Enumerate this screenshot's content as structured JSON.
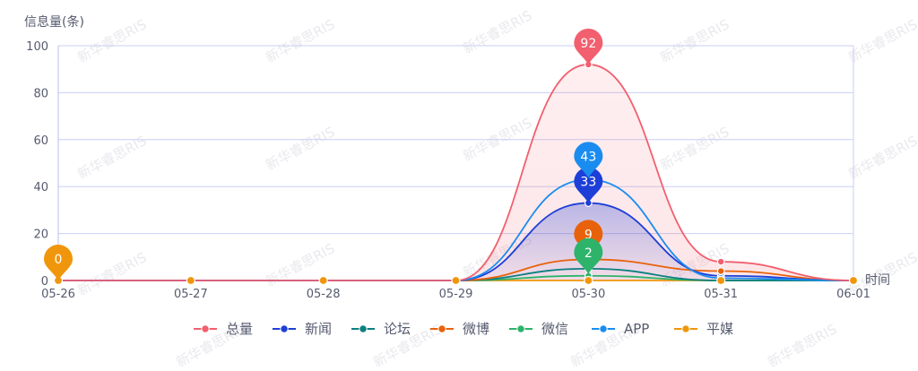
{
  "chart_data": {
    "type": "line",
    "title": "",
    "ylabel": "信息量(条)",
    "xlabel": "时间",
    "categories": [
      "05-26",
      "05-27",
      "05-28",
      "05-29",
      "05-30",
      "05-31",
      "06-01"
    ],
    "ylim": [
      0,
      100
    ],
    "yticks": [
      0,
      20,
      40,
      60,
      80,
      100
    ],
    "grid": true,
    "legend_position": "bottom",
    "series": [
      {
        "name": "总量",
        "color": "#f25f6e",
        "values": [
          0,
          0,
          0,
          0,
          92,
          8,
          0
        ],
        "area": true,
        "pin_index": 4,
        "pin_value": "92"
      },
      {
        "name": "新闻",
        "color": "#1d3fd8",
        "values": [
          0,
          0,
          0,
          0,
          33,
          2,
          0
        ],
        "area": true,
        "pin_index": 4,
        "pin_value": "33"
      },
      {
        "name": "论坛",
        "color": "#0d7f80",
        "values": [
          0,
          0,
          0,
          0,
          5,
          0,
          0
        ],
        "area": false
      },
      {
        "name": "微博",
        "color": "#e8620b",
        "values": [
          0,
          0,
          0,
          0,
          9,
          4,
          0
        ],
        "area": false,
        "pin_index": 4,
        "pin_value": "9"
      },
      {
        "name": "微信",
        "color": "#2db36a",
        "values": [
          0,
          0,
          0,
          0,
          2,
          0,
          0
        ],
        "area": false,
        "pin_index": 4,
        "pin_value": "2"
      },
      {
        "name": "APP",
        "color": "#1a8cf0",
        "values": [
          0,
          0,
          0,
          0,
          43,
          1,
          0
        ],
        "area": false,
        "pin_index": 4,
        "pin_value": "43"
      },
      {
        "name": "平媒",
        "color": "#f0960c",
        "values": [
          0,
          0,
          0,
          0,
          0,
          0,
          0
        ],
        "area": false,
        "pin_index": 0,
        "pin_value": "0"
      }
    ],
    "watermark": "新华睿思RIS"
  }
}
